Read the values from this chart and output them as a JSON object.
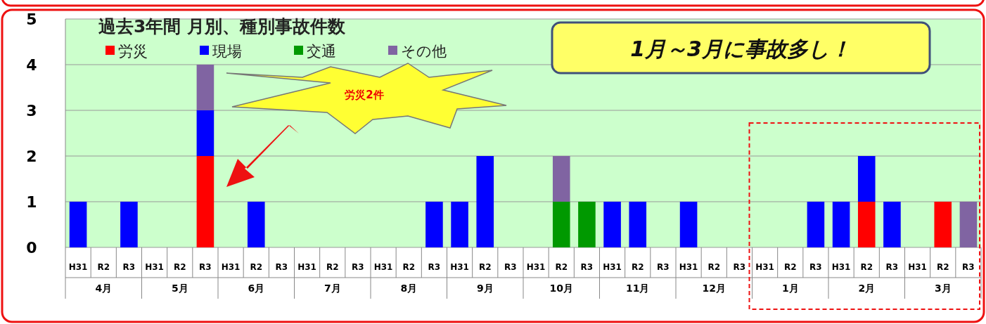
{
  "chart_data": {
    "type": "bar",
    "stacked": true,
    "title": "過去3年間  月別、種別事故件数",
    "categories": [
      "H31",
      "R2",
      "R3",
      "H31",
      "R2",
      "R3",
      "H31",
      "R2",
      "R3",
      "H31",
      "R2",
      "R3",
      "H31",
      "R2",
      "R3",
      "H31",
      "R2",
      "R3",
      "H31",
      "R2",
      "R3",
      "H31",
      "R2",
      "R3",
      "H31",
      "R2",
      "R3",
      "H31",
      "R2",
      "R3",
      "H31",
      "R2",
      "R3",
      "H31",
      "R2",
      "R3"
    ],
    "series": [
      {
        "name": "労災",
        "color": "#ff0000",
        "values": [
          0,
          0,
          0,
          0,
          0,
          2,
          0,
          0,
          0,
          0,
          0,
          0,
          0,
          0,
          0,
          0,
          0,
          0,
          0,
          0,
          0,
          0,
          0,
          0,
          0,
          0,
          0,
          0,
          0,
          0,
          0,
          1,
          0,
          0,
          1,
          0
        ]
      },
      {
        "name": "現場",
        "color": "#0000ff",
        "values": [
          1,
          0,
          1,
          0,
          0,
          1,
          0,
          1,
          0,
          0,
          0,
          0,
          0,
          0,
          1,
          1,
          2,
          0,
          0,
          0,
          0,
          1,
          1,
          0,
          1,
          0,
          0,
          0,
          0,
          1,
          1,
          1,
          1,
          0,
          0,
          0
        ]
      },
      {
        "name": "交通",
        "color": "#009900",
        "values": [
          0,
          0,
          0,
          0,
          0,
          0,
          0,
          0,
          0,
          0,
          0,
          0,
          0,
          0,
          0,
          0,
          0,
          0,
          0,
          1,
          1,
          0,
          0,
          0,
          0,
          0,
          0,
          0,
          0,
          0,
          0,
          0,
          0,
          0,
          0,
          0
        ]
      },
      {
        "name": "その他",
        "color": "#8064a2",
        "values": [
          0,
          0,
          0,
          0,
          0,
          1,
          0,
          0,
          0,
          0,
          0,
          0,
          0,
          0,
          0,
          0,
          0,
          0,
          0,
          1,
          0,
          0,
          0,
          0,
          0,
          0,
          0,
          0,
          0,
          0,
          0,
          0,
          0,
          0,
          0,
          1
        ]
      }
    ],
    "ylim": [
      0,
      5
    ],
    "yticks": [
      0,
      1,
      2,
      3,
      4,
      5
    ],
    "grid": "y",
    "legend": "top left",
    "annotations": [
      "4月",
      "5月",
      "6月",
      "7月",
      "8月",
      "9月",
      "10月",
      "11月",
      "12月",
      "1月",
      "2月",
      "3月",
      "1月～3月に事故多し！",
      "労災2件"
    ]
  }
}
